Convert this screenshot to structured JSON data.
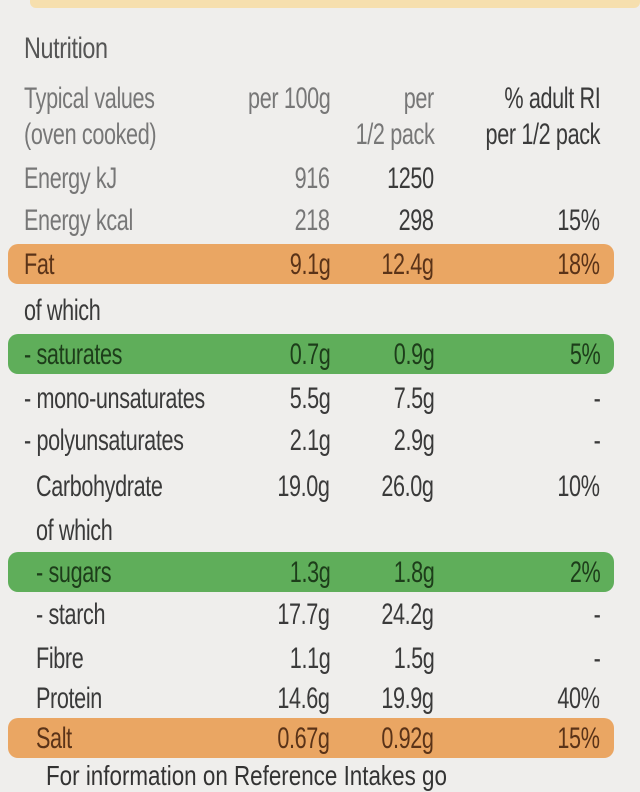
{
  "title": "Nutrition",
  "header": {
    "col_label_line1": "Typical values",
    "col_label_line2": "(oven cooked)",
    "col_100g": "per 100g",
    "col_half_line1": "per",
    "col_half_line2": "1/2 pack",
    "col_ri_line1": "% adult RI",
    "col_ri_line2": "per 1/2 pack"
  },
  "rows": [
    {
      "label": "Energy kJ",
      "per100g": "916",
      "perHalf": "1250",
      "ri": ""
    },
    {
      "label": "Energy kcal",
      "per100g": "218",
      "perHalf": "298",
      "ri": "15%"
    },
    {
      "label": "Fat",
      "per100g": "9.1g",
      "perHalf": "12.4g",
      "ri": "18%",
      "highlight": "orange"
    },
    {
      "label": "of which",
      "per100g": "",
      "perHalf": "",
      "ri": ""
    },
    {
      "label": "- saturates",
      "per100g": "0.7g",
      "perHalf": "0.9g",
      "ri": "5%",
      "highlight": "green"
    },
    {
      "label": "- mono-unsaturates",
      "per100g": "5.5g",
      "perHalf": "7.5g",
      "ri": "-"
    },
    {
      "label": "- polyunsaturates",
      "per100g": "2.1g",
      "perHalf": "2.9g",
      "ri": "-"
    },
    {
      "label": "Carbohydrate",
      "per100g": "19.0g",
      "perHalf": "26.0g",
      "ri": "10%"
    },
    {
      "label": "of which",
      "per100g": "",
      "perHalf": "",
      "ri": ""
    },
    {
      "label": "- sugars",
      "per100g": "1.3g",
      "perHalf": "1.8g",
      "ri": "2%",
      "highlight": "green"
    },
    {
      "label": "- starch",
      "per100g": "17.7g",
      "perHalf": "24.2g",
      "ri": "-"
    },
    {
      "label": "Fibre",
      "per100g": "1.1g",
      "perHalf": "1.5g",
      "ri": "-"
    },
    {
      "label": "Protein",
      "per100g": "14.6g",
      "perHalf": "19.9g",
      "ri": "40%"
    },
    {
      "label": "Salt",
      "per100g": "0.67g",
      "perHalf": "0.92g",
      "ri": "15%",
      "highlight": "orange"
    }
  ],
  "footer": "For information on Reference Intakes go",
  "colors": {
    "orange_highlight": "#eaa663",
    "green_highlight": "#5fae5a",
    "background": "#efeeec"
  }
}
